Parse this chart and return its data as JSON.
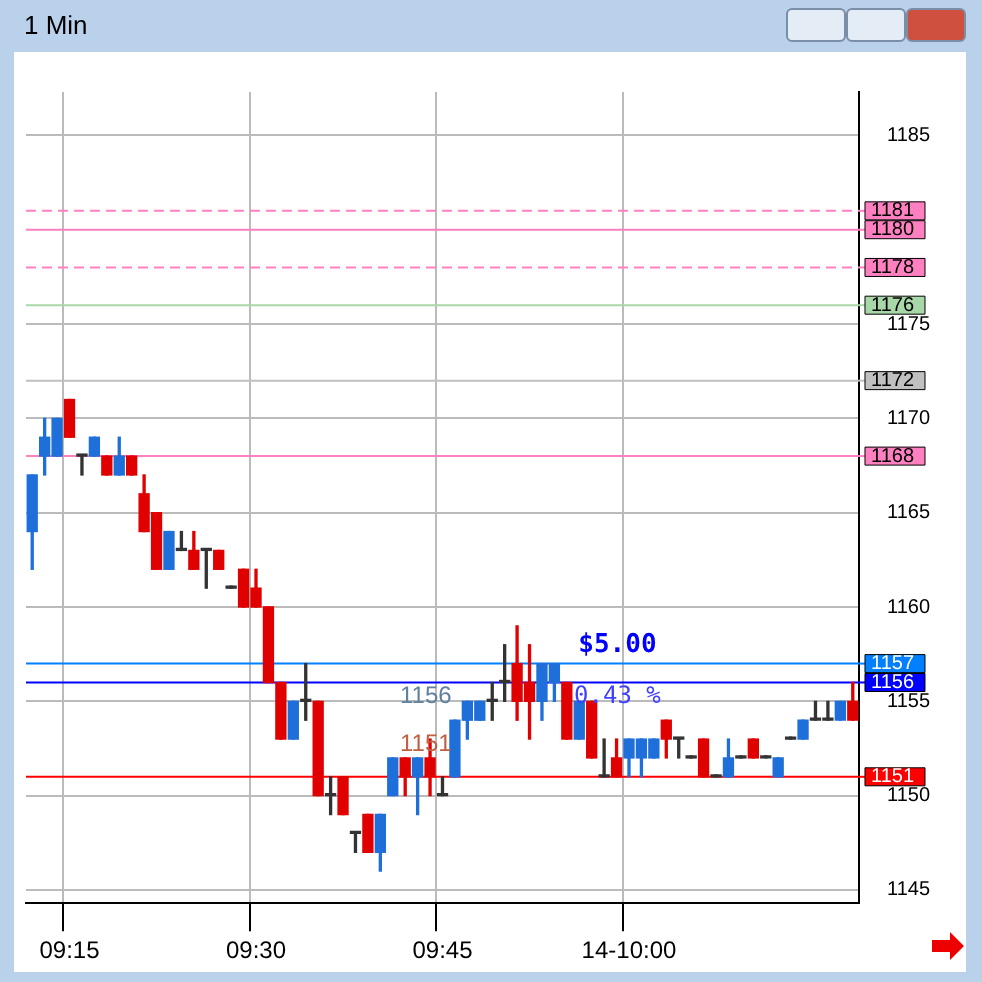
{
  "chart_data": {
    "type": "candlestick",
    "title": "1 Min",
    "categories": [
      null,
      null,
      null,
      "09:15",
      null,
      null,
      null,
      null,
      null,
      null,
      null,
      null,
      null,
      null,
      null,
      null,
      null,
      null,
      "09:30",
      null,
      null,
      null,
      null,
      null,
      null,
      null,
      null,
      null,
      null,
      null,
      null,
      null,
      null,
      "09:45",
      null,
      null,
      null,
      null,
      null,
      null,
      null,
      null,
      null,
      null,
      null,
      null,
      null,
      null,
      "14-10:00",
      null,
      null,
      null,
      null,
      null,
      null,
      null,
      null,
      null,
      null,
      null,
      null,
      null,
      null,
      null,
      null,
      null,
      null
    ],
    "ohlc": [
      [
        1164,
        1167,
        1162,
        1167
      ],
      [
        1168,
        1170,
        1167,
        1169
      ],
      [
        1168,
        1170,
        1168,
        1170
      ],
      [
        1171,
        1171,
        1169,
        1169
      ],
      [
        1168,
        1168,
        1167,
        1168
      ],
      [
        1168,
        1169,
        1168,
        1169
      ],
      [
        1168,
        1168,
        1167,
        1167
      ],
      [
        1167,
        1169,
        1167,
        1168
      ],
      [
        1168,
        1168,
        1167,
        1167
      ],
      [
        1166,
        1167,
        1164,
        1164
      ],
      [
        1165,
        1165,
        1162,
        1162
      ],
      [
        1162,
        1164,
        1162,
        1164
      ],
      [
        1163,
        1164,
        1163,
        1163
      ],
      [
        1163,
        1164,
        1162,
        1162
      ],
      [
        1163,
        1163,
        1161,
        1163
      ],
      [
        1163,
        1163,
        1162,
        1162
      ],
      [
        1161,
        1161,
        1161,
        1161
      ],
      [
        1162,
        1162,
        1160,
        1160
      ],
      [
        1161,
        1162,
        1160,
        1160
      ],
      [
        1160,
        1160,
        1156,
        1156
      ],
      [
        1156,
        1156,
        1153,
        1153
      ],
      [
        1153,
        1155,
        1153,
        1155
      ],
      [
        1155,
        1157,
        1154,
        1155
      ],
      [
        1155,
        1155,
        1150,
        1150
      ],
      [
        1150,
        1151,
        1149,
        1150
      ],
      [
        1151,
        1151,
        1149,
        1149
      ],
      [
        1148,
        1148,
        1147,
        1148
      ],
      [
        1149,
        1149,
        1147,
        1147
      ],
      [
        1147,
        1149,
        1146,
        1149
      ],
      [
        1150,
        1152,
        1150,
        1152
      ],
      [
        1152,
        1152,
        1150,
        1151
      ],
      [
        1151,
        1152,
        1149,
        1152
      ],
      [
        1152,
        1153,
        1150,
        1151
      ],
      [
        1150,
        1151,
        1150,
        1150
      ],
      [
        1151,
        1154,
        1151,
        1154
      ],
      [
        1154,
        1155,
        1153,
        1155
      ],
      [
        1154,
        1155,
        1154,
        1155
      ],
      [
        1155,
        1156,
        1154,
        1155
      ],
      [
        1156,
        1158,
        1155,
        1156
      ],
      [
        1157,
        1159,
        1154,
        1155
      ],
      [
        1156,
        1158,
        1153,
        1155
      ],
      [
        1155,
        1157,
        1154,
        1157
      ],
      [
        1156,
        1157,
        1155,
        1157
      ],
      [
        1156,
        1156,
        1153,
        1153
      ],
      [
        1153,
        1155,
        1153,
        1155
      ],
      [
        1155,
        1155,
        1152,
        1152
      ],
      [
        1151,
        1153,
        1151,
        1151
      ],
      [
        1152,
        1153,
        1151,
        1151
      ],
      [
        1152,
        1153,
        1151,
        1153
      ],
      [
        1152,
        1153,
        1151,
        1153
      ],
      [
        1152,
        1153,
        1152,
        1153
      ],
      [
        1154,
        1154,
        1152,
        1153
      ],
      [
        1153,
        1153,
        1152,
        1153
      ],
      [
        1152,
        1152,
        1152,
        1152
      ],
      [
        1153,
        1153,
        1151,
        1151
      ],
      [
        1151,
        1151,
        1151,
        1151
      ],
      [
        1151,
        1153,
        1151,
        1152
      ],
      [
        1152,
        1152,
        1152,
        1152
      ],
      [
        1153,
        1153,
        1152,
        1152
      ],
      [
        1152,
        1152,
        1152,
        1152
      ],
      [
        1151,
        1152,
        1151,
        1152
      ],
      [
        1153,
        1153,
        1153,
        1153
      ],
      [
        1153,
        1154,
        1153,
        1154
      ],
      [
        1154,
        1155,
        1154,
        1154
      ],
      [
        1154,
        1155,
        1154,
        1154
      ],
      [
        1154,
        1155,
        1154,
        1155
      ],
      [
        1155,
        1156,
        1154,
        1154
      ]
    ],
    "ylim": [
      1144.3,
      1187.3
    ],
    "yticks": [
      1145,
      1150,
      1155,
      1160,
      1165,
      1170,
      1175,
      1185
    ],
    "grid": true,
    "ref_lines": [
      {
        "axis": "y",
        "value": 1181,
        "label": "1181",
        "color": "#ff80c0",
        "line_style": "dashed"
      },
      {
        "axis": "y",
        "value": 1180,
        "label": "1180",
        "color": "#ff80c0"
      },
      {
        "axis": "y",
        "value": 1178,
        "label": "1178",
        "color": "#ff80c0",
        "line_style": "dashed"
      },
      {
        "axis": "y",
        "value": 1176,
        "label": "1176",
        "color": "#a8d8a8"
      },
      {
        "axis": "y",
        "value": 1172,
        "label": "1172",
        "color": "#c0c0c0"
      },
      {
        "axis": "y",
        "value": 1168,
        "label": "1168",
        "color": "#ff80c0"
      },
      {
        "axis": "y",
        "value": 1157,
        "label": "1157",
        "color": "#0080ff"
      },
      {
        "axis": "y",
        "value": 1156,
        "label": "1156",
        "color": "#0000ff"
      },
      {
        "axis": "y",
        "value": 1151,
        "label": "1151",
        "color": "#ff0000"
      }
    ],
    "annotations": [
      {
        "text": "$5.00",
        "y": 1157
      },
      {
        "text": "0.43 %",
        "y": 1156
      },
      {
        "text": "1156",
        "y": 1156
      },
      {
        "text": "1151",
        "y": 1151
      }
    ]
  }
}
